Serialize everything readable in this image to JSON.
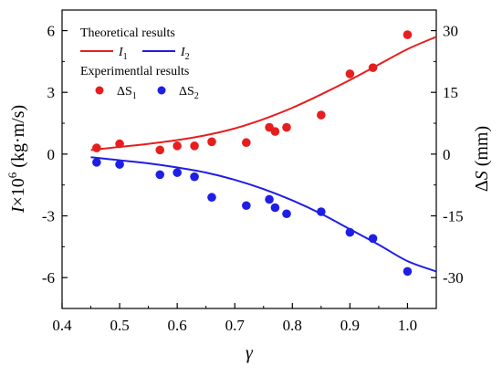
{
  "chart_data": {
    "type": "line",
    "xlabel": "γ",
    "ylabel_left": "I×10⁶ (kg·m/s)",
    "ylabel_right": "ΔS (mm)",
    "xlim": [
      0.4,
      1.05
    ],
    "ylim_left": [
      -7.5,
      7.0
    ],
    "ylim_right": [
      -37.5,
      35.0
    ],
    "x_ticks": [
      0.4,
      0.5,
      0.6,
      0.7,
      0.8,
      0.9,
      1.0
    ],
    "x_tick_labels": [
      "0.4",
      "0.5",
      "0.6",
      "0.7",
      "0.8",
      "0.9",
      "1.0"
    ],
    "y_left_ticks": [
      6,
      3,
      0,
      -3,
      -6
    ],
    "y_left_tick_labels": [
      "6",
      "3",
      "0",
      "-3",
      "-6"
    ],
    "y_right_ticks": [
      30,
      15,
      0,
      -15,
      -30
    ],
    "y_right_tick_labels": [
      "30",
      "15",
      "0",
      "-15",
      "-30"
    ],
    "legend": {
      "theory_title": "Theoretical results",
      "experiment_title": "Experimentlal results",
      "placement": "top-left"
    },
    "lines": [
      {
        "name": "I1",
        "label_main": "I",
        "label_sub": "1",
        "color": "#e61e1e",
        "axis": "left",
        "x": [
          0.45,
          0.5,
          0.55,
          0.6,
          0.65,
          0.7,
          0.75,
          0.8,
          0.85,
          0.9,
          0.95,
          1.0,
          1.05
        ],
        "y": [
          0.2,
          0.35,
          0.5,
          0.68,
          0.92,
          1.25,
          1.7,
          2.25,
          2.9,
          3.6,
          4.35,
          5.1,
          5.7
        ]
      },
      {
        "name": "I2",
        "label_main": "I",
        "label_sub": "2",
        "color": "#1e1ee6",
        "axis": "left",
        "x": [
          0.45,
          0.5,
          0.55,
          0.6,
          0.65,
          0.7,
          0.75,
          0.8,
          0.85,
          0.9,
          0.95,
          1.0,
          1.05
        ],
        "y": [
          -0.15,
          -0.3,
          -0.45,
          -0.65,
          -0.9,
          -1.25,
          -1.7,
          -2.25,
          -2.9,
          -3.65,
          -4.4,
          -5.2,
          -5.7
        ]
      }
    ],
    "scatter": [
      {
        "name": "ΔS1",
        "label_main": "ΔS",
        "label_sub": "1",
        "color": "#e61e1e",
        "axis": "right",
        "points": [
          [
            0.46,
            1.5
          ],
          [
            0.5,
            2.5
          ],
          [
            0.57,
            1.0
          ],
          [
            0.6,
            2.0
          ],
          [
            0.63,
            2.0
          ],
          [
            0.66,
            3.0
          ],
          [
            0.72,
            2.8
          ],
          [
            0.76,
            6.5
          ],
          [
            0.77,
            5.5
          ],
          [
            0.79,
            6.5
          ],
          [
            0.85,
            9.5
          ],
          [
            0.9,
            19.5
          ],
          [
            0.94,
            21.0
          ],
          [
            1.0,
            29.0
          ]
        ]
      },
      {
        "name": "ΔS2",
        "label_main": "ΔS",
        "label_sub": "2",
        "color": "#1e1ee6",
        "axis": "right",
        "points": [
          [
            0.46,
            -2.0
          ],
          [
            0.5,
            -2.5
          ],
          [
            0.57,
            -5.0
          ],
          [
            0.6,
            -4.5
          ],
          [
            0.63,
            -5.5
          ],
          [
            0.66,
            -10.5
          ],
          [
            0.72,
            -12.5
          ],
          [
            0.76,
            -11.0
          ],
          [
            0.77,
            -13.0
          ],
          [
            0.79,
            -14.5
          ],
          [
            0.85,
            -14.0
          ],
          [
            0.9,
            -19.0
          ],
          [
            0.94,
            -20.5
          ],
          [
            1.0,
            -28.5
          ]
        ]
      }
    ]
  }
}
